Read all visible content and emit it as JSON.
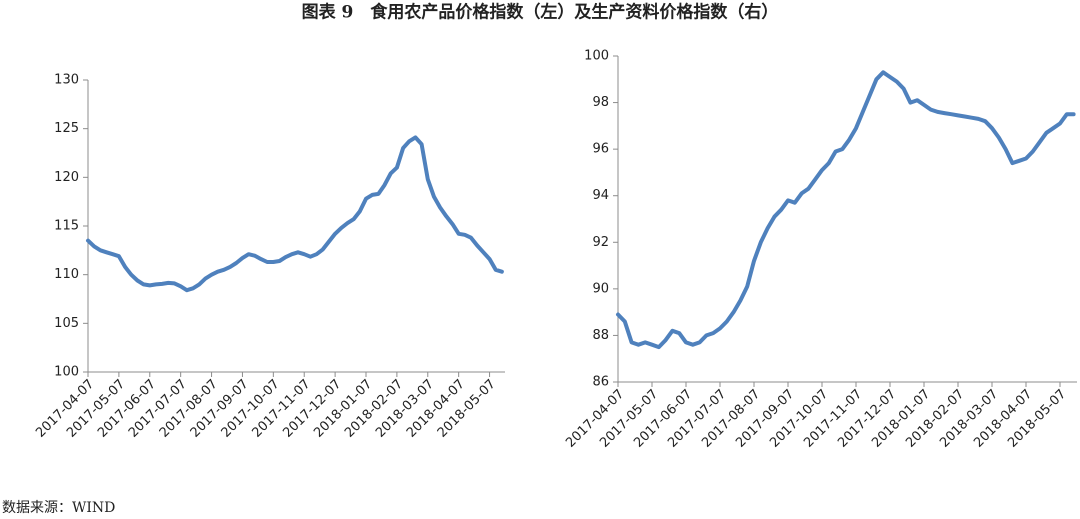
{
  "title": "图表 9　食用农产品价格指数（左）及生产资料价格指数（右）",
  "source": "数据来源：WIND",
  "chart_data": [
    {
      "type": "line",
      "color": "#4f81bd",
      "categories": [
        "2017-04-07",
        null,
        null,
        null,
        null,
        "2017-05-07",
        null,
        null,
        null,
        null,
        "2017-06-07",
        null,
        null,
        null,
        null,
        "2017-07-07",
        null,
        null,
        null,
        null,
        "2017-08-07",
        null,
        null,
        null,
        null,
        "2017-09-07",
        null,
        null,
        null,
        null,
        "2017-10-07",
        null,
        null,
        null,
        null,
        "2017-11-07",
        null,
        null,
        null,
        null,
        "2017-12-07",
        null,
        null,
        null,
        null,
        "2018-01-07",
        null,
        null,
        null,
        null,
        "2018-02-07",
        null,
        null,
        null,
        null,
        "2018-03-07",
        null,
        null,
        null,
        null,
        "2018-04-07",
        null,
        null,
        null,
        null,
        "2018-05-07",
        null,
        null
      ],
      "values": [
        113.5,
        112.9,
        112.5,
        112.3,
        112.1,
        111.9,
        110.8,
        110.0,
        109.4,
        109.0,
        108.9,
        109.0,
        109.05,
        109.15,
        109.1,
        108.8,
        108.4,
        108.6,
        109.0,
        109.6,
        110.0,
        110.3,
        110.5,
        110.8,
        111.2,
        111.7,
        112.1,
        111.95,
        111.6,
        111.3,
        111.3,
        111.4,
        111.8,
        112.1,
        112.3,
        112.1,
        111.85,
        112.1,
        112.6,
        113.4,
        114.2,
        114.8,
        115.3,
        115.7,
        116.5,
        117.8,
        118.2,
        118.3,
        119.2,
        120.4,
        121.0,
        123.0,
        123.7,
        124.1,
        123.4,
        119.8,
        118.0,
        116.9,
        116.0,
        115.2,
        114.2,
        114.1,
        113.8,
        113.0,
        112.3,
        111.6,
        110.5,
        110.3
      ],
      "ylim": [
        100,
        130
      ],
      "yticks": [
        100,
        105,
        110,
        115,
        120,
        125,
        130
      ],
      "grid": false
    },
    {
      "type": "line",
      "color": "#4f81bd",
      "categories": [
        "2017-04-07",
        null,
        null,
        null,
        null,
        "2017-05-07",
        null,
        null,
        null,
        null,
        "2017-06-07",
        null,
        null,
        null,
        null,
        "2017-07-07",
        null,
        null,
        null,
        null,
        "2017-08-07",
        null,
        null,
        null,
        null,
        "2017-09-07",
        null,
        null,
        null,
        null,
        "2017-10-07",
        null,
        null,
        null,
        null,
        "2017-11-07",
        null,
        null,
        null,
        null,
        "2017-12-07",
        null,
        null,
        null,
        null,
        "2018-01-07",
        null,
        null,
        null,
        null,
        "2018-02-07",
        null,
        null,
        null,
        null,
        "2018-03-07",
        null,
        null,
        null,
        null,
        "2018-04-07",
        null,
        null,
        null,
        null,
        "2018-05-07",
        null,
        null
      ],
      "values": [
        88.9,
        88.6,
        87.7,
        87.6,
        87.7,
        87.6,
        87.5,
        87.8,
        88.2,
        88.1,
        87.7,
        87.6,
        87.7,
        88.0,
        88.1,
        88.3,
        88.6,
        89.0,
        89.5,
        90.1,
        91.2,
        92.0,
        92.6,
        93.1,
        93.4,
        93.8,
        93.7,
        94.1,
        94.3,
        94.7,
        95.1,
        95.4,
        95.9,
        96.0,
        96.4,
        96.9,
        97.6,
        98.3,
        99.0,
        99.3,
        99.1,
        98.9,
        98.6,
        98.0,
        98.1,
        97.9,
        97.7,
        97.6,
        97.55,
        97.5,
        97.45,
        97.4,
        97.35,
        97.3,
        97.2,
        96.9,
        96.5,
        96.0,
        95.4,
        95.5,
        95.6,
        95.9,
        96.3,
        96.7,
        96.9,
        97.1,
        97.5,
        97.5
      ],
      "ylim": [
        86,
        100
      ],
      "yticks": [
        86,
        88,
        90,
        92,
        94,
        96,
        98,
        100
      ],
      "grid": false
    }
  ]
}
